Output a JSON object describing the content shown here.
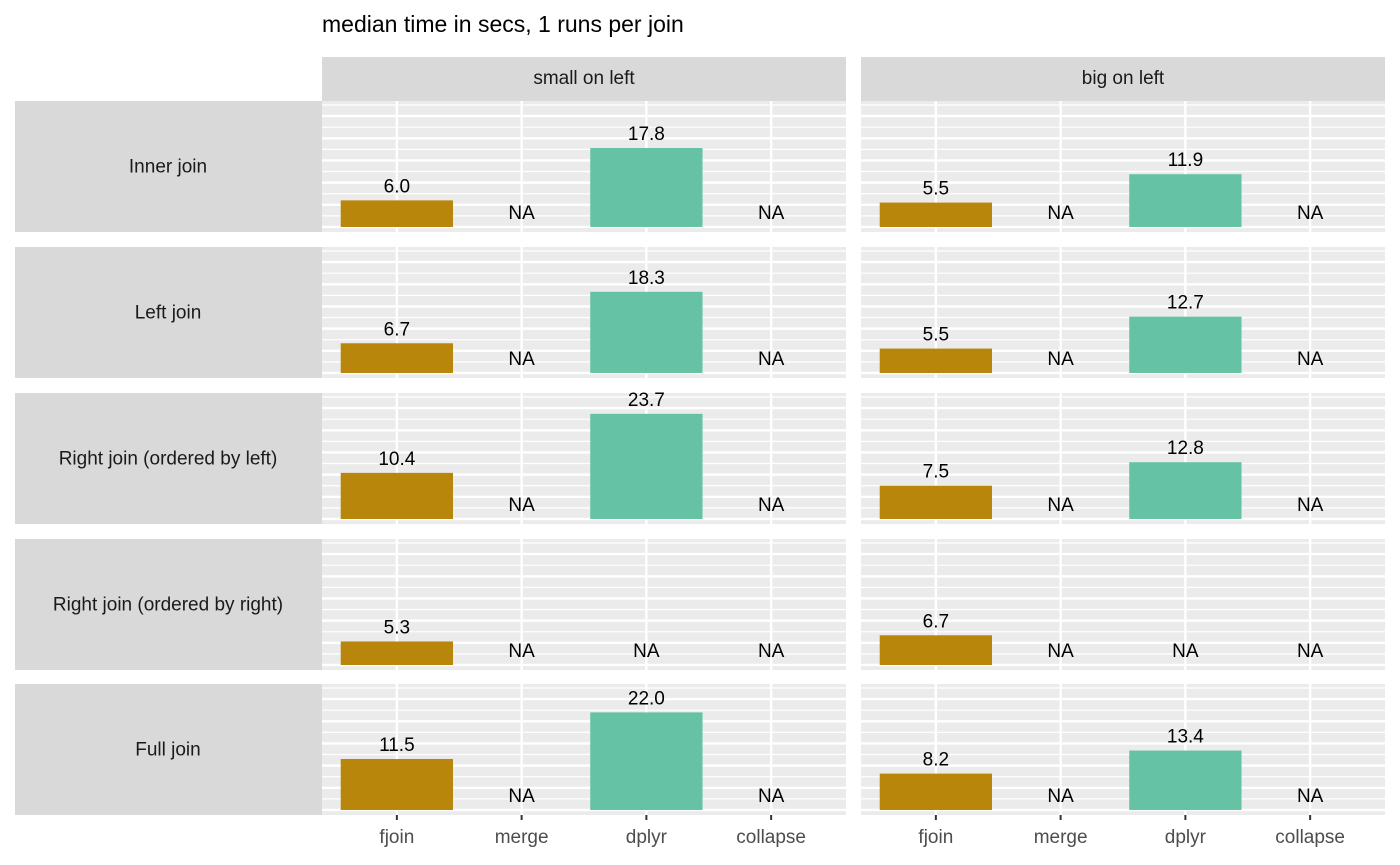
{
  "chart_data": {
    "type": "bar",
    "title": "median time in secs, 1 runs per join",
    "categories": [
      "fjoin",
      "merge",
      "dplyr",
      "collapse"
    ],
    "colors": [
      "#b8860b",
      null,
      "#66c2a5",
      null
    ],
    "columns": [
      "small on left",
      "big on left"
    ],
    "rows": [
      "Inner join",
      "Left join",
      "Right join (ordered by left)",
      "Right join (ordered by right)",
      "Full join"
    ],
    "ylim": [
      -1.13,
      28.4
    ],
    "yticks": [
      0,
      5,
      10,
      15,
      20,
      25
    ],
    "minor_yticks": [
      2.5,
      7.5,
      12.5,
      17.5,
      22.5,
      27.5
    ],
    "grid": true,
    "panels": [
      {
        "values": [
          6.0,
          null,
          17.8,
          null
        ],
        "value_labels": [
          "6.0",
          "NA",
          "17.8",
          "NA"
        ]
      },
      {
        "values": [
          5.5,
          null,
          11.9,
          null
        ],
        "value_labels": [
          "5.5",
          "NA",
          "11.9",
          "NA"
        ]
      },
      {
        "values": [
          6.7,
          null,
          18.3,
          null
        ],
        "value_labels": [
          "6.7",
          "NA",
          "18.3",
          "NA"
        ]
      },
      {
        "values": [
          5.5,
          null,
          12.7,
          null
        ],
        "value_labels": [
          "5.5",
          "NA",
          "12.7",
          "NA"
        ]
      },
      {
        "values": [
          10.4,
          null,
          23.7,
          null
        ],
        "value_labels": [
          "10.4",
          "NA",
          "23.7",
          "NA"
        ]
      },
      {
        "values": [
          7.5,
          null,
          12.8,
          null
        ],
        "value_labels": [
          "7.5",
          "NA",
          "12.8",
          "NA"
        ]
      },
      {
        "values": [
          5.3,
          null,
          null,
          null
        ],
        "value_labels": [
          "5.3",
          "NA",
          "NA",
          "NA"
        ]
      },
      {
        "values": [
          6.7,
          null,
          null,
          null
        ],
        "value_labels": [
          "6.7",
          "NA",
          "NA",
          "NA"
        ]
      },
      {
        "values": [
          11.5,
          null,
          22.0,
          null
        ],
        "value_labels": [
          "11.5",
          "NA",
          "22.0",
          "NA"
        ]
      },
      {
        "values": [
          8.2,
          null,
          13.4,
          null
        ],
        "value_labels": [
          "8.2",
          "NA",
          "13.4",
          "NA"
        ]
      }
    ]
  }
}
